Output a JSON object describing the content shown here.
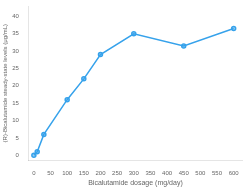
{
  "chart_data": {
    "type": "line",
    "x": [
      0,
      10,
      30,
      100,
      150,
      200,
      300,
      450,
      600
    ],
    "values": [
      0,
      1.0,
      6.0,
      16.0,
      22.0,
      29.0,
      35.0,
      31.5,
      36.5
    ],
    "xlabel": "Bicalutamide dosage (mg/day)",
    "ylabel": "(R)-Bicalutamide steady-state levels (μg/mL)",
    "xlim": [
      -15,
      625
    ],
    "ylim": [
      -1.5,
      43
    ],
    "xticks": [
      0,
      50,
      100,
      150,
      200,
      250,
      300,
      350,
      400,
      450,
      500,
      550,
      600
    ],
    "yticks": [
      0,
      5,
      10,
      15,
      20,
      25,
      30,
      35,
      40
    ],
    "marker": "circle",
    "grid": false
  }
}
